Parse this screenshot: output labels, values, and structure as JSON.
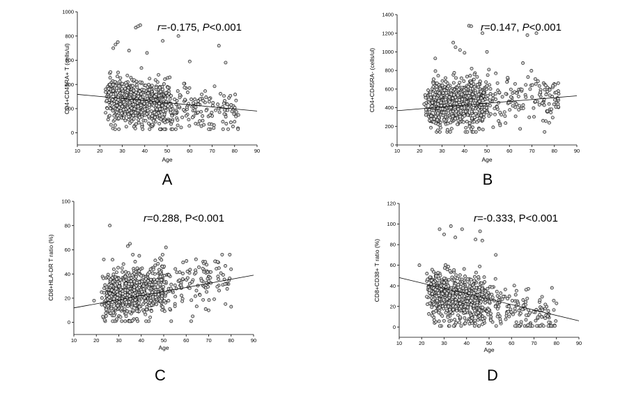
{
  "chart_data": [
    {
      "type": "scatter",
      "panel": "A",
      "xlabel": "Age",
      "ylabel": "CD4+CD45RA+ T (cells/ul)",
      "xlim": [
        10,
        90
      ],
      "ylim": [
        -100,
        1000
      ],
      "xticks": [
        10,
        20,
        30,
        40,
        50,
        60,
        70,
        80,
        90
      ],
      "yticks": [
        0,
        200,
        400,
        600,
        800,
        1000
      ],
      "stat_prefix": "r",
      "stat_text": "=-0.175, ",
      "p_prefix": "P",
      "p_text": "<0.001",
      "fit_line": {
        "x": [
          10,
          90
        ],
        "y": [
          318,
          180
        ]
      },
      "gen": {
        "n": 820,
        "seed": 11,
        "mu": [
          22,
          46
        ],
        "noise": 95,
        "intercept": 318,
        "slope": -1.725,
        "xmin": 22,
        "xmax": 82,
        "ymin": 30,
        "ymax": 720,
        "outliers": [
          [
            38,
            890
          ],
          [
            36,
            870
          ],
          [
            37,
            880
          ],
          [
            55,
            800
          ],
          [
            48,
            760
          ],
          [
            28,
            750
          ],
          [
            73,
            720
          ],
          [
            27,
            730
          ],
          [
            26,
            700
          ],
          [
            33,
            680
          ],
          [
            41,
            660
          ],
          [
            76,
            580
          ],
          [
            60,
            590
          ]
        ]
      }
    },
    {
      "type": "scatter",
      "panel": "B",
      "xlabel": "Age",
      "ylabel": "CD4+CD45RA- (cells/ul)",
      "xlim": [
        10,
        90
      ],
      "ylim": [
        0,
        1400
      ],
      "xticks": [
        10,
        20,
        30,
        40,
        50,
        60,
        70,
        80,
        90
      ],
      "yticks": [
        0,
        200,
        400,
        600,
        800,
        1000,
        1200,
        1400
      ],
      "stat_prefix": "r",
      "stat_text": "=0.147, ",
      "p_prefix": "P",
      "p_text": "<0.001",
      "fit_line": {
        "x": [
          10,
          90
        ],
        "y": [
          368,
          528
        ]
      },
      "gen": {
        "n": 820,
        "seed": 23,
        "mu": [
          22,
          46
        ],
        "noise": 130,
        "intercept": 368,
        "slope": 2.0,
        "xmin": 22,
        "xmax": 82,
        "ymin": 140,
        "ymax": 980,
        "outliers": [
          [
            42,
            1280
          ],
          [
            43,
            1275
          ],
          [
            48,
            1200
          ],
          [
            68,
            1180
          ],
          [
            72,
            1200
          ],
          [
            36,
            1050
          ],
          [
            38,
            1020
          ],
          [
            40,
            990
          ],
          [
            50,
            1000
          ],
          [
            35,
            1100
          ],
          [
            66,
            880
          ],
          [
            27,
            930
          ]
        ]
      }
    },
    {
      "type": "scatter",
      "panel": "C",
      "xlabel": "Age",
      "ylabel": "CD8+HLA-DR T ratio (%)",
      "xlim": [
        10,
        90
      ],
      "ylim": [
        -10,
        100
      ],
      "xticks": [
        10,
        20,
        30,
        40,
        50,
        60,
        70,
        80,
        90
      ],
      "yticks": [
        0,
        20,
        40,
        60,
        80,
        100
      ],
      "stat_prefix": "r",
      "stat_text": "=0.288, P<0.001",
      "p_prefix": "",
      "p_text": "",
      "fit_line": {
        "x": [
          10,
          90
        ],
        "y": [
          12,
          39
        ]
      },
      "gen": {
        "n": 820,
        "seed": 37,
        "mu": [
          22,
          46
        ],
        "noise": 10.5,
        "intercept": 12,
        "slope": 0.3375,
        "xmin": 21,
        "xmax": 80,
        "ymin": 1,
        "ymax": 56,
        "outliers": [
          [
            26,
            80
          ],
          [
            35,
            65
          ],
          [
            34,
            63
          ],
          [
            51,
            62
          ],
          [
            19,
            18
          ],
          [
            70,
            10
          ],
          [
            80,
            13
          ],
          [
            74,
            50
          ]
        ]
      }
    },
    {
      "type": "scatter",
      "panel": "D",
      "xlabel": "Age",
      "ylabel": "CD8+CD38+ T ratio (%)",
      "xlim": [
        10,
        90
      ],
      "ylim": [
        -10,
        120
      ],
      "xticks": [
        10,
        20,
        30,
        40,
        50,
        60,
        70,
        80,
        90
      ],
      "yticks": [
        0,
        20,
        40,
        60,
        80,
        100,
        120
      ],
      "stat_prefix": "r",
      "stat_text": "=-0.333, P<0.001",
      "p_prefix": "",
      "p_text": "",
      "fit_line": {
        "x": [
          10,
          90
        ],
        "y": [
          48,
          6
        ]
      },
      "gen": {
        "n": 820,
        "seed": 53,
        "mu": [
          22,
          46
        ],
        "noise": 11.5,
        "intercept": 48,
        "slope": -0.525,
        "xmin": 22,
        "xmax": 80,
        "ymin": 1,
        "ymax": 75,
        "outliers": [
          [
            33,
            98
          ],
          [
            46,
            93
          ],
          [
            28,
            95
          ],
          [
            38,
            95
          ],
          [
            30,
            90
          ],
          [
            35,
            87
          ],
          [
            44,
            85
          ],
          [
            47,
            84
          ],
          [
            19,
            60
          ],
          [
            78,
            38
          ],
          [
            80,
            23
          ],
          [
            53,
            70
          ]
        ]
      }
    }
  ]
}
